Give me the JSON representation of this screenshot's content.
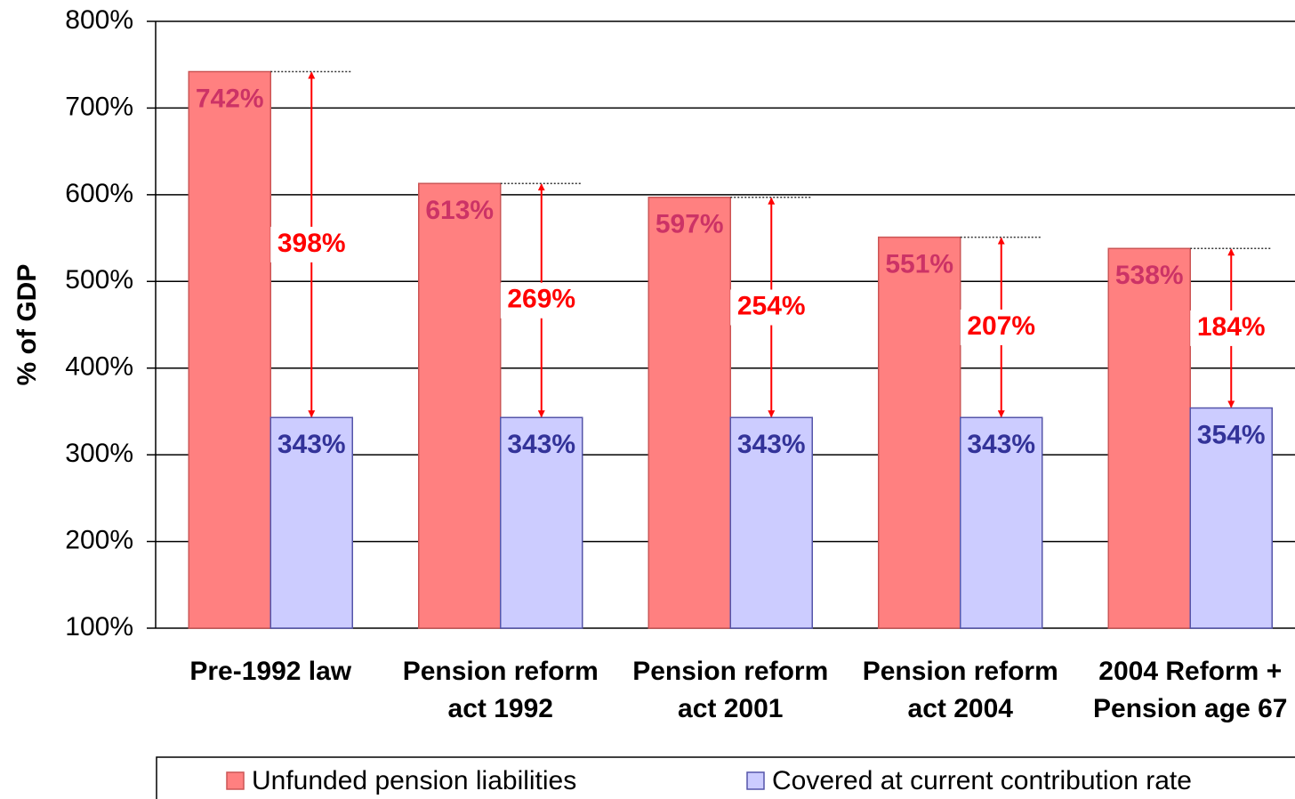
{
  "chart_data": {
    "type": "bar",
    "y_label": "% of GDP",
    "categories": [
      "Pre-1992 law",
      "Pension reform act 1992",
      "Pension reform act 2001",
      "Pension reform act 2004",
      "2004 Reform + Pension age 67"
    ],
    "series": [
      {
        "name": "Unfunded pension liabilities",
        "color": "#ff8080",
        "values": [
          742,
          613,
          597,
          551,
          538
        ],
        "value_labels": [
          "742%",
          "613%",
          "597%",
          "551%",
          "538%"
        ]
      },
      {
        "name": "Covered at current contribution rate",
        "color": "#ccccff",
        "values": [
          343,
          343,
          343,
          343,
          354
        ],
        "value_labels": [
          "343%",
          "343%",
          "343%",
          "343%",
          "354%"
        ]
      }
    ],
    "gaps": {
      "values": [
        398,
        269,
        254,
        207,
        184
      ],
      "value_labels": [
        "398%",
        "269%",
        "254%",
        "207%",
        "184%"
      ],
      "color": "#ff0000"
    },
    "ylim": [
      100,
      800
    ],
    "yticks": [
      {
        "value": 100,
        "label": "100%"
      },
      {
        "value": 200,
        "label": "200%"
      },
      {
        "value": 300,
        "label": "300%"
      },
      {
        "value": 400,
        "label": "400%"
      },
      {
        "value": 500,
        "label": "500%"
      },
      {
        "value": 600,
        "label": "600%"
      },
      {
        "value": 700,
        "label": "700%"
      },
      {
        "value": 800,
        "label": "800%"
      }
    ],
    "grid": true
  }
}
